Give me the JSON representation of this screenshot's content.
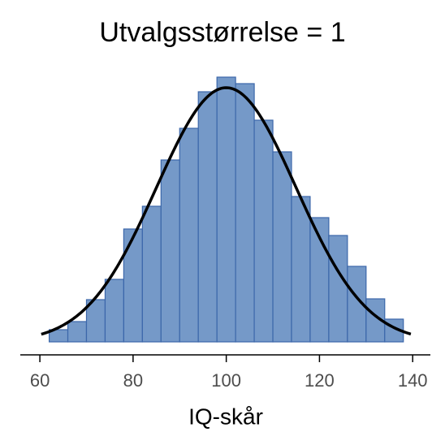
{
  "chart_data": {
    "type": "histogram",
    "title": "Utvalgsstørrelse = 1",
    "x_label": "IQ-skår",
    "bins": [
      62,
      66,
      70,
      74,
      78,
      82,
      86,
      90,
      94,
      98,
      102,
      106,
      110,
      114,
      118,
      122,
      126,
      130,
      134,
      138
    ],
    "values": [
      15,
      25,
      52,
      77,
      139,
      167,
      224,
      263,
      308,
      326,
      318,
      273,
      234,
      179,
      153,
      131,
      93,
      53,
      28
    ],
    "color": "#7599c8",
    "edge_color": "#3c67aa",
    "xlim": [
      55.8,
      143.8
    ],
    "xticks": [
      60,
      80,
      100,
      120,
      140
    ],
    "ylim": [
      0,
      340
    ],
    "curve": {
      "mean": 100,
      "sd": 15,
      "peak": 313,
      "range": [
        60.3,
        139.6
      ],
      "color": "#000000"
    }
  }
}
